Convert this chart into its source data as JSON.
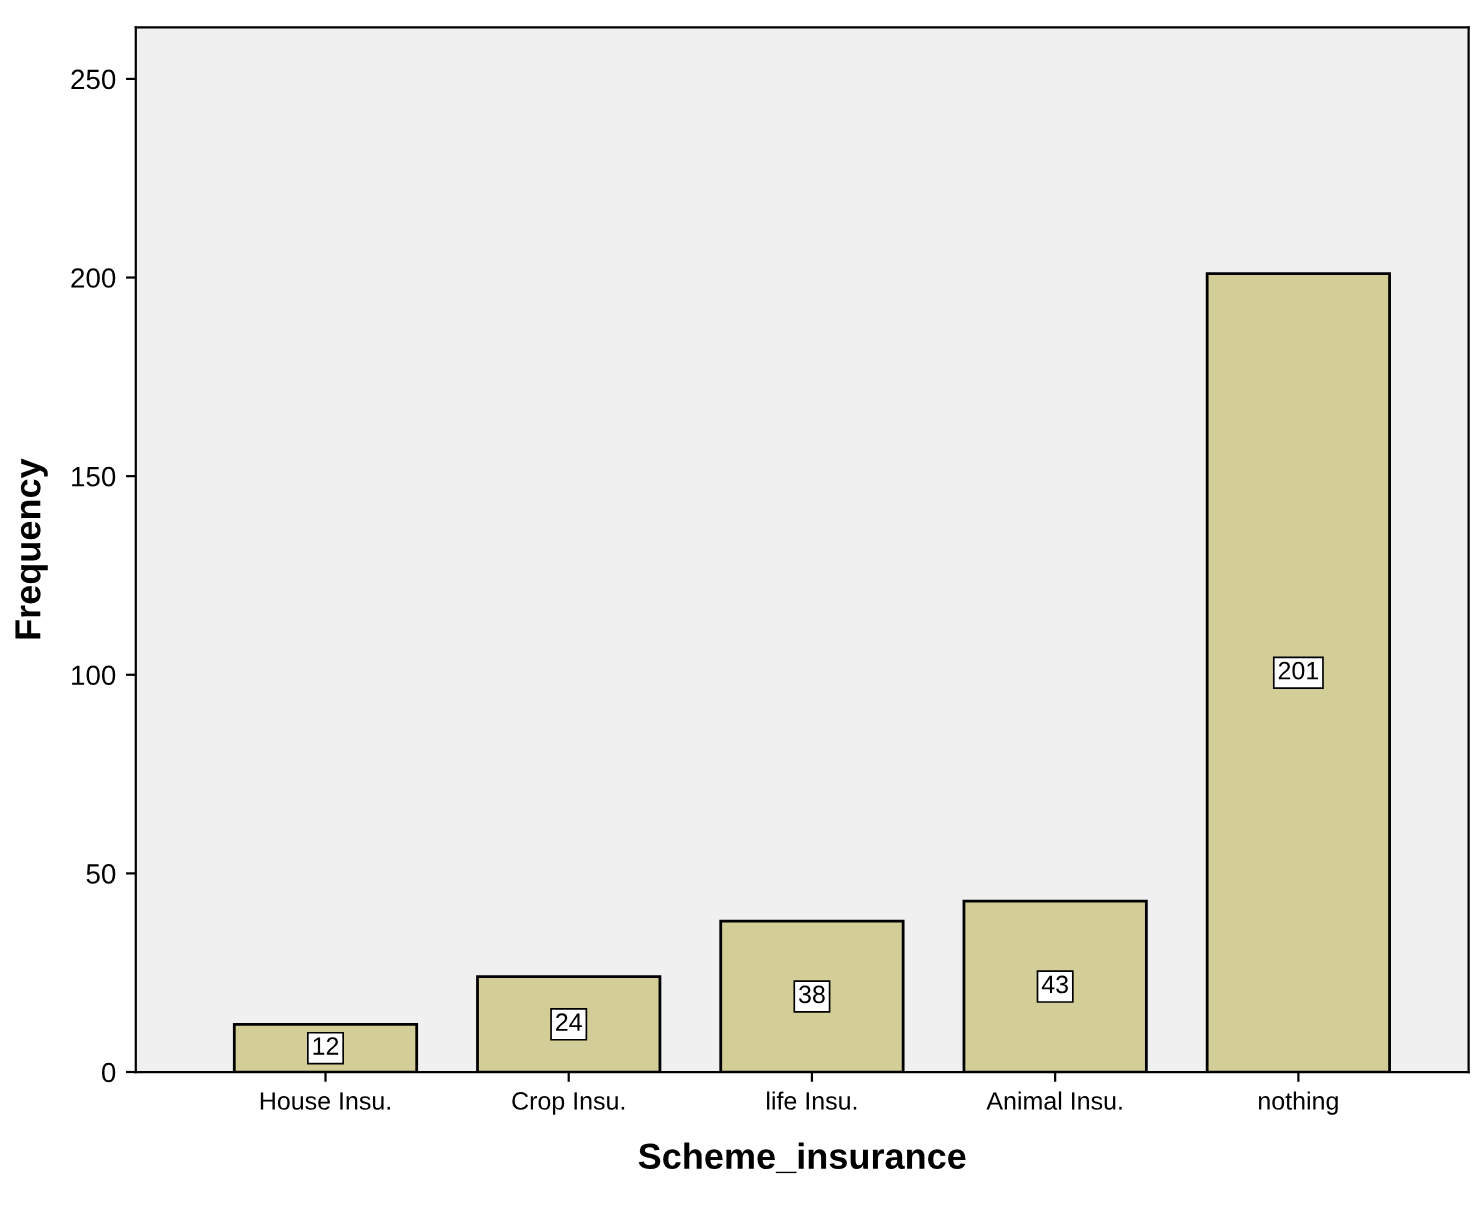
{
  "chart_data": {
    "type": "bar",
    "xlabel": "Scheme_insurance",
    "ylabel": "Frequency",
    "categories": [
      "House Insu.",
      "Crop Insu.",
      "life Insu.",
      "Animal Insu.",
      "nothing"
    ],
    "values": [
      12,
      24,
      38,
      43,
      201
    ],
    "color": "#d3ce97",
    "ylim": [
      0,
      263
    ],
    "yticks": [
      0,
      50,
      100,
      150,
      200,
      250
    ],
    "grid": false,
    "data_labels": true
  }
}
